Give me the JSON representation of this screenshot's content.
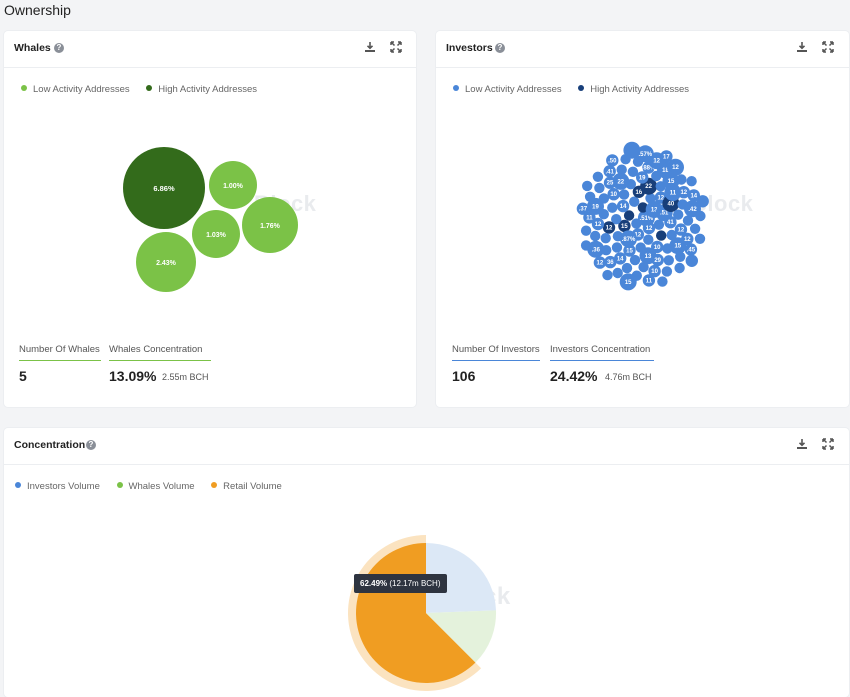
{
  "page_title": "Ownership",
  "colors": {
    "light_green": "#7bc247",
    "dark_green": "#336b1b",
    "light_blue": "#4a86d8",
    "dark_blue": "#183f7a",
    "orange": "#f09d22",
    "pale_blue": "#dce8f6",
    "pale_green": "#e4f2dc"
  },
  "whales": {
    "title": "Whales",
    "legend": [
      "Low Activity Addresses",
      "High Activity Addresses"
    ],
    "bubbles": [
      {
        "label": "6.86%",
        "kind": "high"
      },
      {
        "label": "1.00%",
        "kind": "low"
      },
      {
        "label": "1.76%",
        "kind": "low"
      },
      {
        "label": "1.03%",
        "kind": "low"
      },
      {
        "label": "2.43%",
        "kind": "low"
      }
    ],
    "stat_count_label": "Number Of Whales",
    "stat_count_value": "5",
    "stat_conc_label": "Whales Concentration",
    "stat_conc_value": "13.09%",
    "stat_conc_sub": "2.55m BCH",
    "watermark": "Block"
  },
  "investors": {
    "title": "Investors",
    "legend": [
      "Low Activity Addresses",
      "High Activity Addresses"
    ],
    "bubble_labels": [
      ".51%",
      "12",
      "13",
      "12",
      "15",
      "14",
      ".51",
      ".87%",
      "16",
      "12",
      "41",
      "22",
      "10",
      "40",
      "15",
      "12",
      "13",
      "10",
      "19",
      "11",
      "22",
      "12",
      "29",
      "14",
      "15",
      "12",
      "15",
      "25",
      ".88%",
      "19",
      "12",
      "12",
      "18",
      "10",
      ".42",
      "36",
      "11",
      ".41",
      ".36",
      "12",
      "14",
      ".45",
      "12",
      "11",
      "12",
      ".57%",
      ".37",
      "15",
      ".50",
      "17"
    ],
    "stat_count_label": "Number Of Investors",
    "stat_count_value": "106",
    "stat_conc_label": "Investors Concentration",
    "stat_conc_value": "24.42%",
    "stat_conc_sub": "4.76m BCH",
    "watermark": "Block"
  },
  "concentration": {
    "title": "Concentration",
    "legend": [
      "Investors Volume",
      "Whales Volume",
      "Retail Volume"
    ],
    "tooltip_value": "62.49%",
    "tooltip_sub": "(12.17m BCH)",
    "watermark": "eBlock"
  },
  "chart_data": {
    "type": "pie",
    "categories": [
      "Retail Volume",
      "Investors Volume",
      "Whales Volume"
    ],
    "values": [
      62.49,
      24.42,
      13.09
    ],
    "title": "Concentration",
    "legend_position": "top-left"
  }
}
